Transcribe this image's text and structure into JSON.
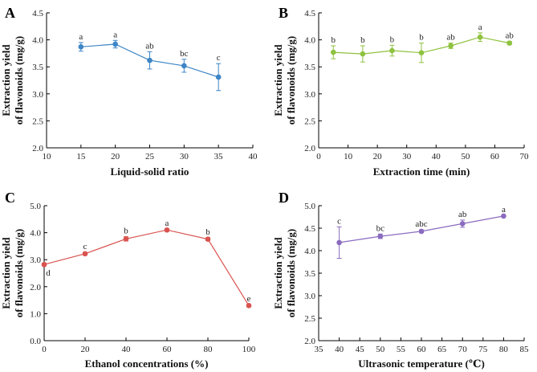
{
  "chart_data": [
    {
      "panel": "A",
      "type": "line",
      "color": "#3d85c6",
      "xlabel": "Liquid-solid ratio",
      "ylabel_lines": [
        "Extraction yield",
        "of flavonoids (mg/g)"
      ],
      "xlim": [
        10,
        40
      ],
      "xticks": [
        10,
        15,
        20,
        25,
        30,
        35,
        40
      ],
      "ylim": [
        2.0,
        4.5
      ],
      "yticks": [
        2.0,
        2.5,
        3.0,
        3.5,
        4.0,
        4.5
      ],
      "ytick_labels": [
        "2.0",
        "2.5",
        "3.0",
        "3.5",
        "4.0",
        "4.5"
      ],
      "x": [
        15,
        20,
        25,
        30,
        35
      ],
      "y": [
        3.87,
        3.92,
        3.62,
        3.52,
        3.31
      ],
      "err": [
        0.08,
        0.07,
        0.16,
        0.12,
        0.25
      ],
      "sig": [
        "a",
        "a",
        "ab",
        "bc",
        "c"
      ]
    },
    {
      "panel": "B",
      "type": "line",
      "color": "#8fc23f",
      "xlabel": "Extraction time (min)",
      "ylabel_lines": [
        "Extraction yield",
        "of flavonoids (mg/g)"
      ],
      "xlim": [
        0,
        70
      ],
      "xticks": [
        0,
        10,
        20,
        30,
        40,
        50,
        60,
        70
      ],
      "ylim": [
        2.0,
        4.5
      ],
      "yticks": [
        2.0,
        2.5,
        3.0,
        3.5,
        4.0,
        4.5
      ],
      "ytick_labels": [
        "2.0",
        "2.5",
        "3.0",
        "3.5",
        "4.0",
        "4.5"
      ],
      "x": [
        5,
        15,
        25,
        35,
        45,
        55,
        65
      ],
      "y": [
        3.77,
        3.74,
        3.8,
        3.76,
        3.89,
        4.05,
        3.94
      ],
      "err": [
        0.12,
        0.15,
        0.1,
        0.18,
        0.05,
        0.08,
        0.03
      ],
      "sig": [
        "b",
        "b",
        "b",
        "b",
        "ab",
        "a",
        "ab"
      ]
    },
    {
      "panel": "C",
      "type": "line",
      "color": "#d9534f",
      "xlabel": "Ethanol concentrations (%)",
      "ylabel_lines": [
        "Extraction yield",
        "of flavonoids (mg/g)"
      ],
      "xlim": [
        0,
        100
      ],
      "xticks": [
        0,
        20,
        40,
        60,
        80,
        100
      ],
      "ylim": [
        0.0,
        5.0
      ],
      "yticks": [
        0.0,
        1.0,
        2.0,
        3.0,
        4.0,
        5.0
      ],
      "ytick_labels": [
        "0.0",
        "1.0",
        "2.0",
        "3.0",
        "4.0",
        "5.0"
      ],
      "x": [
        0,
        20,
        40,
        60,
        80,
        100
      ],
      "y": [
        2.82,
        3.22,
        3.77,
        4.1,
        3.76,
        1.3
      ],
      "err": [
        0.05,
        0.05,
        0.08,
        0.04,
        0.05,
        0.04
      ],
      "sig": [
        "d",
        "c",
        "b",
        "a",
        "b",
        "e"
      ],
      "sig_pos": [
        "below",
        "above",
        "above",
        "above",
        "above",
        "above"
      ]
    },
    {
      "panel": "D",
      "type": "line",
      "color": "#8a6bbf",
      "xlabel": "Ultrasonic temperature (℃)",
      "ylabel_lines": [
        "Extraction yield",
        "of flavonoids (mg/g)"
      ],
      "xlim": [
        35,
        85
      ],
      "xticks": [
        35,
        40,
        45,
        50,
        55,
        60,
        65,
        70,
        75,
        80,
        85
      ],
      "ylim": [
        2.0,
        5.0
      ],
      "yticks": [
        2.0,
        2.5,
        3.0,
        3.5,
        4.0,
        4.5,
        5.0
      ],
      "ytick_labels": [
        "2.0",
        "2.5",
        "3.0",
        "3.5",
        "4.0",
        "4.5",
        "5.0"
      ],
      "x": [
        40,
        50,
        60,
        70,
        80
      ],
      "y": [
        4.18,
        4.32,
        4.43,
        4.6,
        4.77
      ],
      "err": [
        0.35,
        0.05,
        0.03,
        0.08,
        0.02
      ],
      "sig": [
        "c",
        "bc",
        "abc",
        "ab",
        "a"
      ]
    }
  ]
}
